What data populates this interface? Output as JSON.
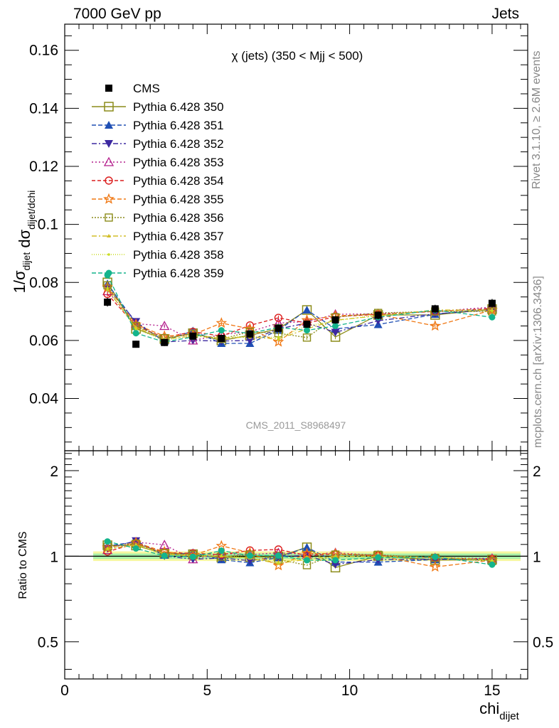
{
  "header": {
    "left": "7000 GeV pp",
    "right": "Jets"
  },
  "side": {
    "rivet": "Rivet 3.1.10, ≥ 2.6M events",
    "mcplots": "mcplots.cern.ch [arXiv:1306.3436]"
  },
  "analysis_label": "CMS_2011_S8968497",
  "chart_data": {
    "type": "line",
    "title": "χ (jets) (350 < Mjj <  500)",
    "xlabel": "chi_dijet",
    "ylabel": "1/σ_dijet dσ_dijet/dchi_dijet",
    "ratio_ylabel": "Ratio to CMS",
    "xlim": [
      0,
      16.25
    ],
    "ylim": [
      0.022,
      0.169
    ],
    "ratio_ylim": [
      0.37,
      2.35
    ],
    "ratio_scale": "log",
    "x_ticks": [
      0,
      5,
      10,
      15
    ],
    "y_ticks": [
      0.04,
      0.06,
      0.08,
      0.1,
      0.12,
      0.14,
      0.16
    ],
    "ratio_ticks": [
      0.5,
      1,
      2
    ],
    "grid": false,
    "legend_position": "top-left",
    "x": [
      1.5,
      2.5,
      3.5,
      4.5,
      5.5,
      6.5,
      7.5,
      8.5,
      9.5,
      11,
      13,
      15
    ],
    "data": {
      "name": "CMS",
      "values": [
        0.0732,
        0.0587,
        0.0593,
        0.0615,
        0.0607,
        0.0622,
        0.0642,
        0.0656,
        0.0671,
        0.0687,
        0.0709,
        0.0728
      ],
      "errors": [
        0.0015,
        0.0012,
        0.0012,
        0.0012,
        0.0012,
        0.0012,
        0.0013,
        0.0013,
        0.0013,
        0.0014,
        0.0014,
        0.0015
      ]
    },
    "series": [
      {
        "name": "Pythia 6.428 350",
        "color": "#8c8c1a",
        "dash": "",
        "marker": "open-square",
        "values": [
          0.08,
          0.064,
          0.0605,
          0.0625,
          0.06,
          0.0618,
          0.064,
          0.0705,
          0.0612,
          0.0688,
          0.0688,
          0.0708
        ]
      },
      {
        "name": "Pythia 6.428 351",
        "color": "#1f4fb4",
        "dash": "6,3",
        "marker": "filled-triangle-up",
        "values": [
          0.0795,
          0.066,
          0.0598,
          0.0633,
          0.059,
          0.059,
          0.0635,
          0.0705,
          0.064,
          0.0655,
          0.069,
          0.0712
        ]
      },
      {
        "name": "Pythia 6.428 352",
        "color": "#3c28a0",
        "dash": "7,3,2,3",
        "marker": "filled-triangle-down",
        "values": [
          0.078,
          0.0665,
          0.0595,
          0.06,
          0.0598,
          0.06,
          0.064,
          0.066,
          0.0628,
          0.0668,
          0.0692,
          0.0705
        ]
      },
      {
        "name": "Pythia 6.428 353",
        "color": "#b41e8c",
        "dash": "2,3",
        "marker": "open-triangle-up",
        "values": [
          0.077,
          0.0658,
          0.065,
          0.06,
          0.062,
          0.063,
          0.066,
          0.0665,
          0.069,
          0.0692,
          0.07,
          0.0715
        ]
      },
      {
        "name": "Pythia 6.428 354",
        "color": "#dc1e1e",
        "dash": "5,3",
        "marker": "open-circle",
        "values": [
          0.076,
          0.065,
          0.061,
          0.063,
          0.0615,
          0.0652,
          0.0678,
          0.066,
          0.0682,
          0.069,
          0.07,
          0.071
        ]
      },
      {
        "name": "Pythia 6.428 355",
        "color": "#f07814",
        "dash": "6,3",
        "marker": "open-star",
        "values": [
          0.0785,
          0.0655,
          0.0615,
          0.062,
          0.066,
          0.064,
          0.0595,
          0.067,
          0.0685,
          0.069,
          0.065,
          0.0705
        ]
      },
      {
        "name": "Pythia 6.428 356",
        "color": "#8c8c1a",
        "dash": "2,2",
        "marker": "open-square-small",
        "values": [
          0.079,
          0.065,
          0.0608,
          0.0622,
          0.0605,
          0.063,
          0.0625,
          0.061,
          0.068,
          0.0695,
          0.07,
          0.07
        ]
      },
      {
        "name": "Pythia 6.428 357",
        "color": "#d2be28",
        "dash": "7,3,2,3",
        "marker": "small-tri",
        "values": [
          0.0775,
          0.0645,
          0.0605,
          0.0615,
          0.0608,
          0.0612,
          0.0605,
          0.064,
          0.067,
          0.0685,
          0.0705,
          0.0705
        ]
      },
      {
        "name": "Pythia 6.428 358",
        "color": "#c8dc1e",
        "dash": "1,2",
        "marker": "dot",
        "values": [
          0.078,
          0.064,
          0.06,
          0.0618,
          0.061,
          0.0615,
          0.061,
          0.065,
          0.0668,
          0.0688,
          0.0702,
          0.0702
        ]
      },
      {
        "name": "Pythia 6.428 359",
        "color": "#14b48c",
        "dash": "6,3",
        "marker": "filled-circle",
        "values": [
          0.0825,
          0.0625,
          0.0595,
          0.0612,
          0.0635,
          0.0625,
          0.0645,
          0.0635,
          0.065,
          0.068,
          0.0705,
          0.068
        ]
      }
    ]
  }
}
